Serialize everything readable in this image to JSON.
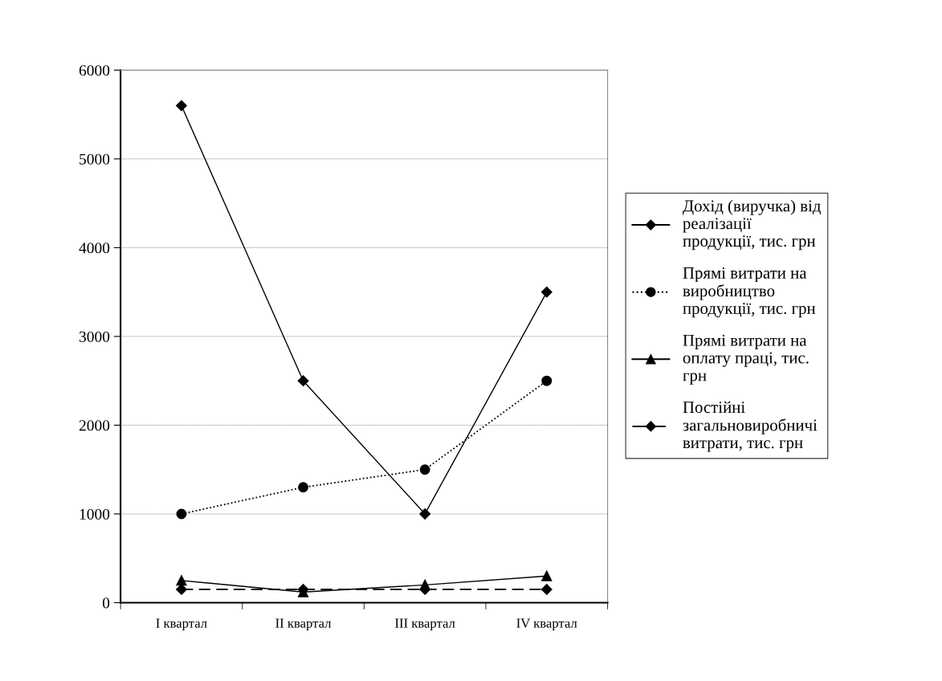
{
  "chart_data": {
    "type": "line",
    "categories": [
      "І квартал",
      "ІІ квартал",
      "ІІІ квартал",
      "ІV квартал"
    ],
    "ylim": [
      0,
      6000
    ],
    "yticks": [
      0,
      1000,
      2000,
      3000,
      4000,
      5000,
      6000
    ],
    "grid": "y",
    "legend": "right",
    "series": [
      {
        "name": "Дохід (виручка) від реалізації продукції, тис. грн",
        "color": "#000000",
        "marker": "diamond",
        "line_style": "solid",
        "values": [
          5600,
          2500,
          1000,
          3500
        ]
      },
      {
        "name": "Прямі витрати на виробництво продукції, тис. грн",
        "color": "#000000",
        "marker": "circle",
        "line_style": "dotted",
        "values": [
          1000,
          1300,
          1500,
          2500
        ]
      },
      {
        "name": "Прямі витрати на оплату праці, тис. грн",
        "color": "#000000",
        "marker": "triangle",
        "line_style": "solid",
        "values": [
          250,
          120,
          200,
          300
        ]
      },
      {
        "name": "Постійні загальновиробничі витрати, тис. грн",
        "color": "#000000",
        "marker": "diamond",
        "line_style": "dashed",
        "values": [
          150,
          150,
          150,
          150
        ]
      }
    ]
  }
}
